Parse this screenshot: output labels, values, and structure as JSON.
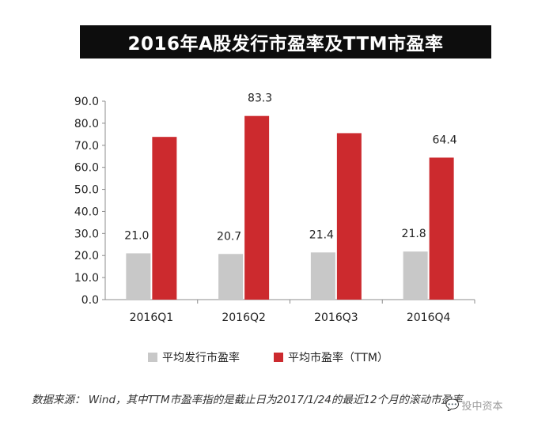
{
  "title": "2016年A股发行市盈率及TTM市盈率",
  "chart_data": {
    "type": "bar",
    "title": "2016年A股发行市盈率及TTM市盈率",
    "categories": [
      "2016Q1",
      "2016Q2",
      "2016Q3",
      "2016Q4"
    ],
    "series": [
      {
        "name": "平均发行市盈率",
        "values": [
          21.0,
          20.7,
          21.4,
          21.8
        ],
        "labels": [
          "21.0",
          "20.7",
          "21.4",
          "21.8"
        ],
        "color": "#c8c8c8"
      },
      {
        "name": "平均市盈率（TTM）",
        "values": [
          73.8,
          83.3,
          75.5,
          64.4
        ],
        "labels": [
          "",
          "83.3",
          "",
          "64.4"
        ],
        "color": "#cc2a2e"
      }
    ],
    "yticks": [
      "0.0",
      "10.0",
      "20.0",
      "30.0",
      "40.0",
      "50.0",
      "60.0",
      "70.0",
      "80.0",
      "90.0"
    ],
    "ylim": [
      0,
      90
    ],
    "grid": false,
    "legend_position": "bottom"
  },
  "footer": {
    "source": "数据来源： Wind，其中TTM市盈率指的是截止日为2017/1/24的最近12个月的滚动市盈率",
    "watermark": "投中资本",
    "watermark_icon": "wechat-icon"
  }
}
